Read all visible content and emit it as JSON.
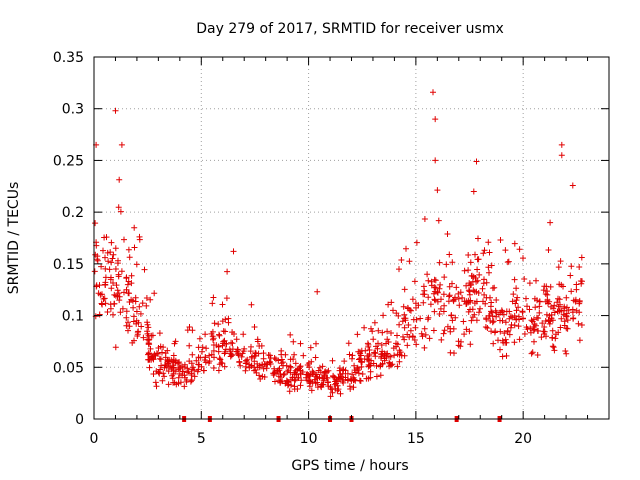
{
  "chart_data": {
    "type": "scatter",
    "title": "Day 279 of 2017, SRMTID for receiver usmx",
    "xlabel": "GPS time / hours",
    "ylabel": "SRMTID / TECUs",
    "xlim": [
      0,
      24
    ],
    "ylim": [
      0,
      0.35
    ],
    "xticks": [
      0,
      5,
      10,
      15,
      20
    ],
    "xtick_labels": [
      "0",
      "5",
      "10",
      "15",
      "20"
    ],
    "yticks": [
      0,
      0.05,
      0.1,
      0.15,
      0.2,
      0.25,
      0.3,
      0.35
    ],
    "ytick_labels": [
      "0",
      "0.05",
      "0.1",
      "0.15",
      "0.2",
      "0.25",
      "0.3",
      "0.35"
    ],
    "grid": true,
    "marker": "plus",
    "color": "#e00000",
    "series": [
      {
        "name": "SRMTID",
        "envelope_note": "Dense scatter of approx. 1000 samples; median level per hour listed below, individual points reconstructed around these levels",
        "hourly_median": [
          {
            "hour": 0,
            "value": 0.14
          },
          {
            "hour": 1,
            "value": 0.13
          },
          {
            "hour": 2,
            "value": 0.1
          },
          {
            "hour": 3,
            "value": 0.055
          },
          {
            "hour": 4,
            "value": 0.045
          },
          {
            "hour": 5,
            "value": 0.055
          },
          {
            "hour": 6,
            "value": 0.075
          },
          {
            "hour": 7,
            "value": 0.06
          },
          {
            "hour": 8,
            "value": 0.05
          },
          {
            "hour": 9,
            "value": 0.045
          },
          {
            "hour": 10,
            "value": 0.04
          },
          {
            "hour": 11,
            "value": 0.035
          },
          {
            "hour": 12,
            "value": 0.045
          },
          {
            "hour": 13,
            "value": 0.06
          },
          {
            "hour": 14,
            "value": 0.07
          },
          {
            "hour": 15,
            "value": 0.095
          },
          {
            "hour": 16,
            "value": 0.12
          },
          {
            "hour": 17,
            "value": 0.1
          },
          {
            "hour": 18,
            "value": 0.13
          },
          {
            "hour": 19,
            "value": 0.09
          },
          {
            "hour": 20,
            "value": 0.1
          },
          {
            "hour": 21,
            "value": 0.1
          },
          {
            "hour": 22,
            "value": 0.11
          }
        ],
        "peaks": [
          {
            "x": 0.1,
            "y": 0.265
          },
          {
            "x": 1.0,
            "y": 0.298
          },
          {
            "x": 1.3,
            "y": 0.265
          },
          {
            "x": 15.8,
            "y": 0.316
          },
          {
            "x": 15.9,
            "y": 0.29
          },
          {
            "x": 15.9,
            "y": 0.25
          },
          {
            "x": 21.8,
            "y": 0.265
          },
          {
            "x": 21.8,
            "y": 0.255
          },
          {
            "x": 17.7,
            "y": 0.22
          },
          {
            "x": 6.5,
            "y": 0.162
          },
          {
            "x": 10.4,
            "y": 0.123
          }
        ],
        "gap_markers_x": [
          4.2,
          5.4,
          8.6,
          11.0,
          12.0,
          16.9,
          18.9
        ]
      }
    ]
  }
}
